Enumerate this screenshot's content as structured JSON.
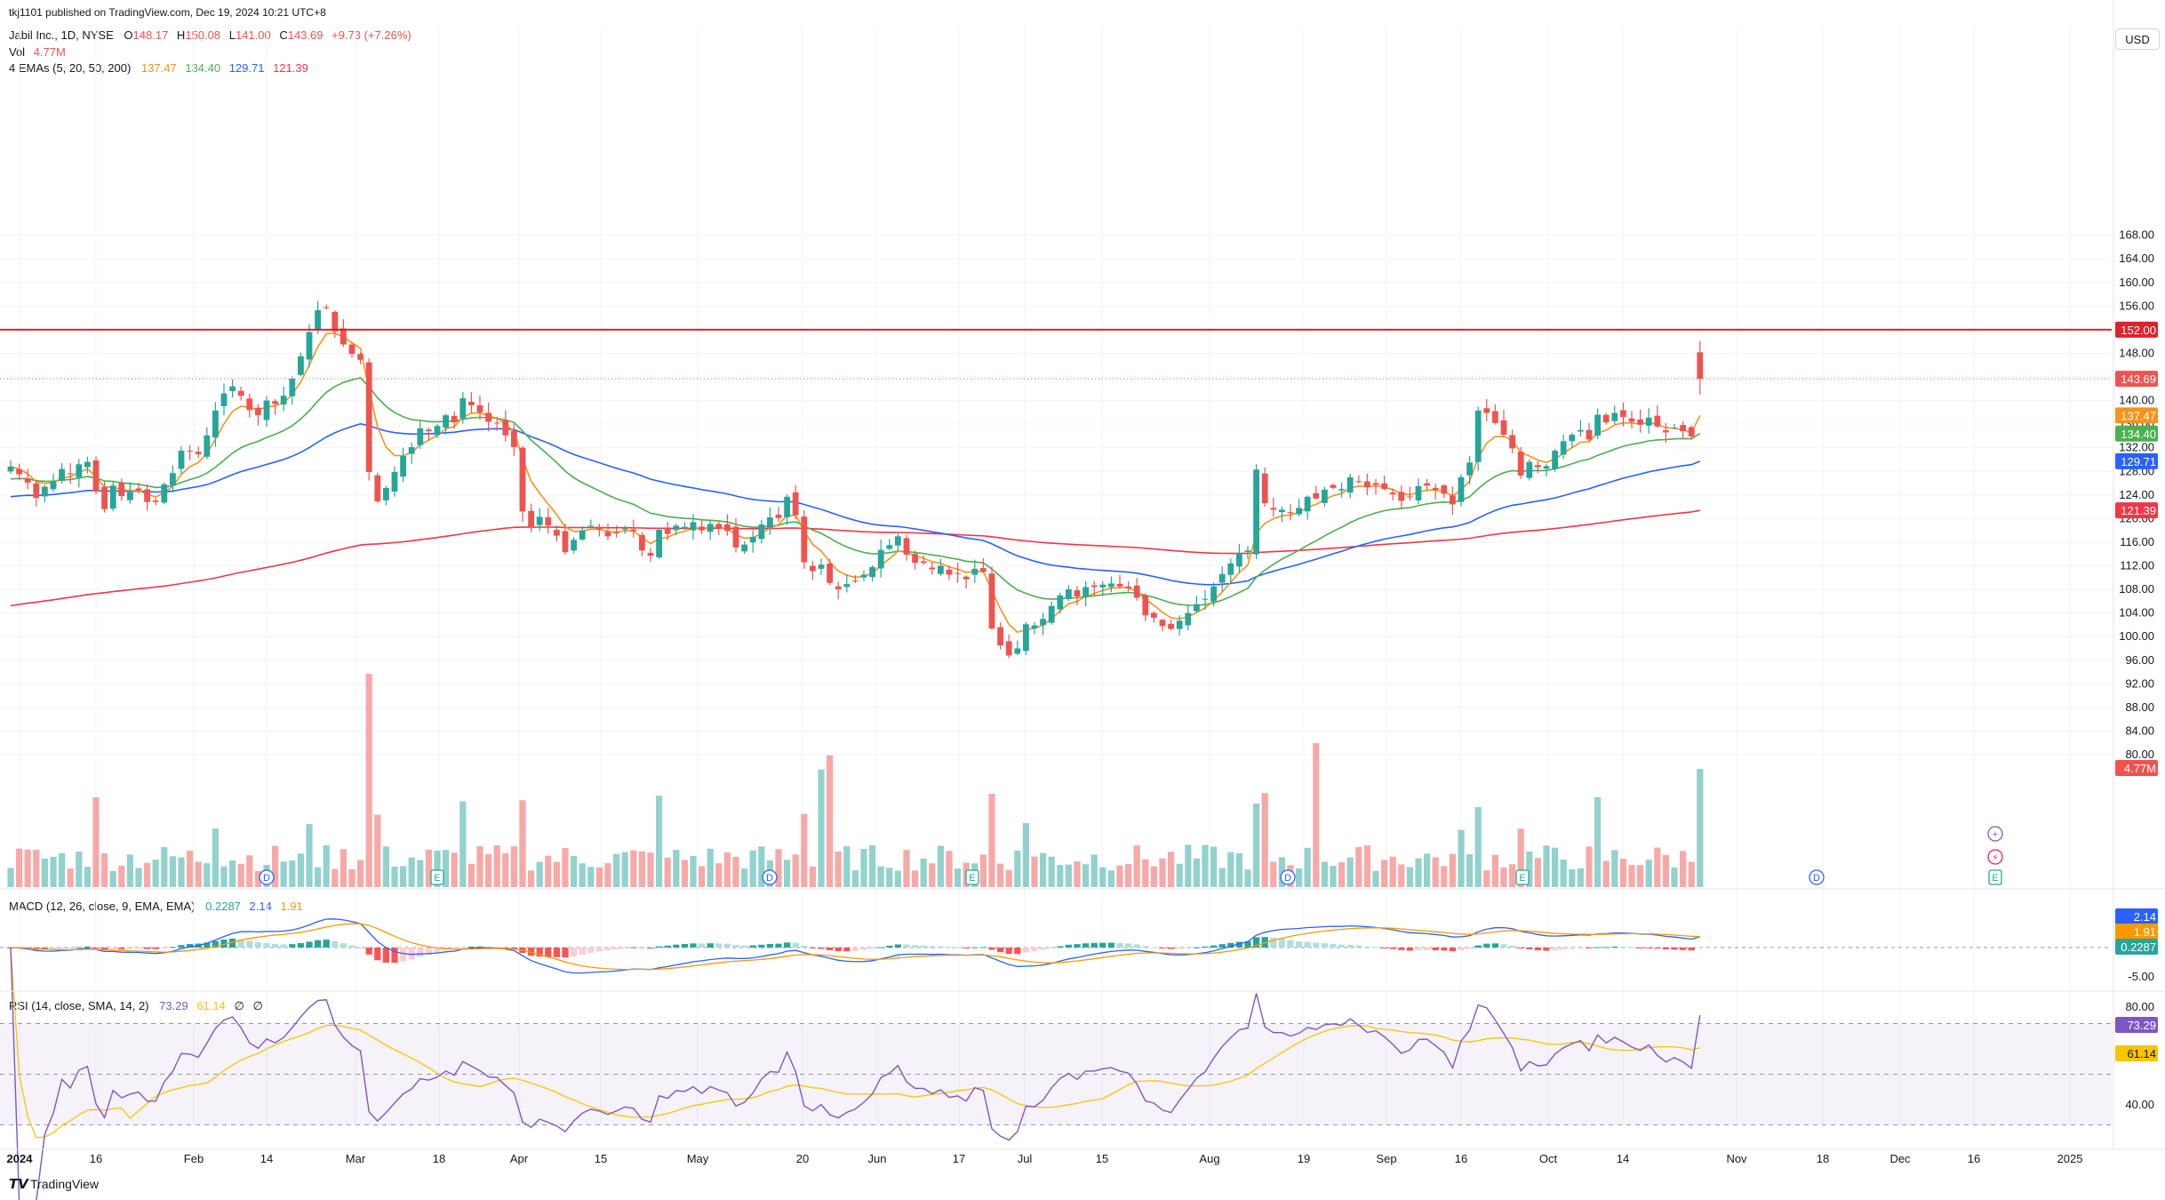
{
  "publish_line": "tkj1101 published on TradingView.com, Dec 19, 2024 10:21 UTC+8",
  "legend": {
    "symbol": "Jabil Inc., 1D, NYSE",
    "o_label": "O",
    "o": "148.17",
    "h_label": "H",
    "h": "150.08",
    "l_label": "L",
    "l": "141.00",
    "c_label": "C",
    "c": "143.69",
    "change": "+9.73 (+7.26%)",
    "vol_label": "Vol",
    "vol": "4.77M",
    "ema_label": "4 EMAs (5, 20, 50, 200)",
    "ema_values": [
      "137.47",
      "134.40",
      "129.71",
      "121.39"
    ]
  },
  "currency": "USD",
  "footer_brand": "TradingView",
  "colors": {
    "up": "#26a69a",
    "down": "#ef5350",
    "ema5": "#f7931a",
    "ema20": "#4caf50",
    "ema50": "#2962ff",
    "ema200": "#f23645",
    "resistance": "#e0202b",
    "macd": "#2962ff",
    "signal": "#ff9800",
    "rsi": "#7e57c2"
  },
  "price_labels": [
    {
      "text": "152.00",
      "color": "#e0202b"
    },
    {
      "text": "143.69",
      "color": "#ef5350"
    },
    {
      "text": "137.47",
      "color": "#f7931a"
    },
    {
      "text": "134.40",
      "color": "#4caf50"
    },
    {
      "text": "129.71",
      "color": "#2962ff"
    },
    {
      "text": "121.39",
      "color": "#f23645"
    },
    {
      "text": "4.77M",
      "color": "#ef5350"
    }
  ],
  "event_badges": [
    "D",
    "E",
    "D",
    "E",
    "D",
    "E",
    "D",
    "E"
  ],
  "macd": {
    "label": "MACD (12, 26, close, 9, EMA, EMA)",
    "values": [
      "0.2287",
      "2.14",
      "1.91"
    ],
    "axis_ticks": [
      "-5.00"
    ],
    "scale_labels": [
      "2.14",
      "1.91",
      "0.2287"
    ]
  },
  "rsi": {
    "label": "RSI (14, close, SMA, 14, 2)",
    "values": [
      "73.29",
      "61.14",
      "∅",
      "∅"
    ],
    "axis_ticks": [
      "80.00",
      "40.00"
    ],
    "scale_labels": [
      "73.29",
      "61.14"
    ]
  },
  "chart_data": {
    "type": "candlestick",
    "symbol": "Jabil Inc., 1D, NYSE",
    "x_tick_labels": [
      "2024",
      "16",
      "Feb",
      "14",
      "Mar",
      "18",
      "Apr",
      "15",
      "May",
      "20",
      "Jun",
      "17",
      "Jul",
      "15",
      "Aug",
      "19",
      "Sep",
      "16",
      "Oct",
      "14",
      "Nov",
      "18",
      "Dec",
      "16",
      "2025"
    ],
    "y_ticks": [
      "168.00",
      "164.00",
      "160.00",
      "156.00",
      "152.00",
      "148.00",
      "144.00",
      "140.00",
      "136.00",
      "132.00",
      "128.00",
      "124.00",
      "120.00",
      "116.00",
      "112.00",
      "108.00",
      "104.00",
      "100.00",
      "96.00",
      "92.00",
      "88.00",
      "84.00",
      "80.00"
    ],
    "ylim": [
      80,
      172
    ],
    "horizontal_line": 152.0,
    "last_price": 143.69,
    "closes": [
      128.8,
      127.5,
      126.1,
      123.5,
      125.4,
      126.3,
      128.4,
      127.6,
      129.2,
      129.6,
      124.6,
      121.6,
      125.6,
      123.8,
      124.5,
      124.8,
      122.8,
      122.8,
      125.8,
      127.7,
      131.5,
      131.4,
      130.9,
      134.1,
      138.3,
      141.2,
      142.4,
      140.8,
      138.4,
      137.5,
      140.0,
      139.4,
      140.8,
      143.7,
      147.5,
      151.6,
      155.3,
      155.7,
      151.7,
      149.5,
      147.9,
      146.9,
      127.9,
      122.9,
      125.2,
      127.9,
      130.6,
      132.1,
      135.3,
      134.8,
      135.7,
      137.5,
      136.3,
      140.4,
      139.2,
      138.0,
      136.4,
      136.2,
      134.1,
      132.1,
      121.2,
      118.5,
      120.3,
      118.8,
      117.1,
      114.3,
      116.4,
      118.0,
      118.8,
      118.2,
      117.0,
      117.6,
      118.3,
      117.9,
      114.6,
      113.7,
      118.1,
      117.4,
      118.8,
      118.6,
      119.4,
      118.0,
      119.1,
      118.4,
      117.9,
      115.1,
      115.6,
      116.9,
      119.0,
      120.2,
      120.1,
      123.7,
      120.6,
      112.6,
      111.1,
      112.2,
      109.1,
      108.0,
      108.9,
      109.4,
      110.5,
      111.8,
      114.7,
      115.5,
      117.0,
      113.9,
      112.5,
      112.5,
      111.4,
      112.0,
      110.5,
      110.7,
      109.7,
      111.5,
      111.0,
      101.4,
      98.5,
      96.8,
      98.0,
      102.1,
      101.9,
      103.0,
      105.2,
      107.0,
      108.0,
      106.8,
      108.4,
      108.4,
      108.8,
      109.0,
      108.5,
      108.2,
      106.6,
      103.6,
      103.2,
      101.8,
      101.3,
      102.7,
      104.0,
      105.5,
      106.4,
      108.5,
      110.6,
      112.4,
      114.2,
      114.6,
      128.3,
      122.6,
      121.5,
      121.5,
      120.9,
      121.8,
      123.7,
      123.4,
      124.9,
      125.2,
      125.0,
      127.0,
      126.2,
      125.3,
      125.7,
      125.0,
      124.1,
      123.0,
      123.6,
      125.5,
      125.6,
      124.9,
      124.2,
      122.4,
      127.0,
      129.5,
      138.3,
      137.9,
      136.2,
      134.2,
      131.9,
      127.3,
      129.6,
      128.7,
      128.9,
      131.5,
      133.1,
      134.2,
      135.0,
      133.4,
      137.6,
      136.3,
      137.9,
      137.2,
      136.4,
      135.9,
      137.1,
      135.6,
      134.6,
      135.4,
      134.8,
      133.9,
      143.69
    ],
    "ema": [
      {
        "name": "EMA 5",
        "last": 137.47
      },
      {
        "name": "EMA 20",
        "last": 134.4
      },
      {
        "name": "EMA 50",
        "last": 129.71
      },
      {
        "name": "EMA 200",
        "last": 121.39
      }
    ],
    "volume_last": "4.77M",
    "grid": true
  }
}
